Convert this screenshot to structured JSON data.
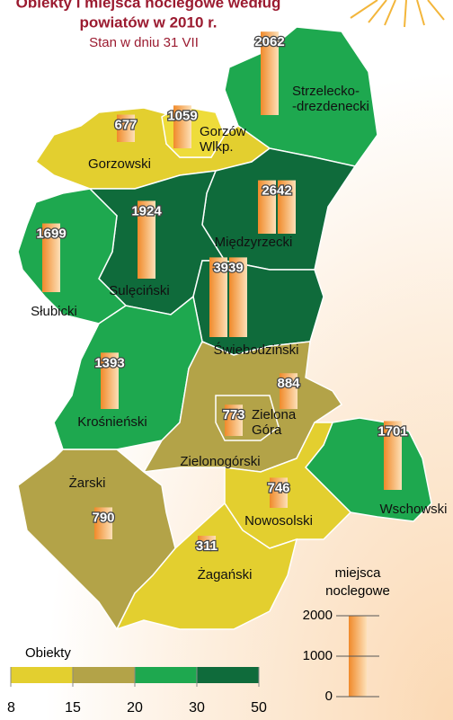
{
  "chart_data": {
    "type": "map",
    "title": [
      "Obiekty i miejsca noclegowe według",
      "powiatów w 2010 r."
    ],
    "subtitle": "Stan w dniu 31 VII",
    "regions": [
      {
        "name": [
          "Strzelecko-",
          "-drezdenecki"
        ],
        "value": 2062,
        "color": "#1ea84f"
      },
      {
        "name": [
          "Gorzowski"
        ],
        "value": 677,
        "color": "#e3cf2f"
      },
      {
        "name": [
          "Gorzów",
          "Wlkp."
        ],
        "value": 1059,
        "color": "#eedc3a"
      },
      {
        "name": [
          "Międzyrzecki"
        ],
        "value": 2642,
        "color": "#0f6b3b"
      },
      {
        "name": [
          "Sulęciński"
        ],
        "value": 1924,
        "color": "#0f6b3b"
      },
      {
        "name": [
          "Słubicki"
        ],
        "value": 1699,
        "color": "#1ea84f"
      },
      {
        "name": [
          "Świebodziński"
        ],
        "value": 3939,
        "color": "#0f6b3b"
      },
      {
        "name": [
          "Krośnieński"
        ],
        "value": 1393,
        "color": "#1ea84f"
      },
      {
        "name": [
          "Zielonogórski"
        ],
        "value": 884,
        "color": "#b3a348"
      },
      {
        "name": [
          "Zielona",
          "Góra"
        ],
        "value": 773,
        "color": "#b3a348"
      },
      {
        "name": [
          "Wschowski"
        ],
        "value": 1701,
        "color": "#1ea84f"
      },
      {
        "name": [
          "Nowosolski"
        ],
        "value": 746,
        "color": "#e3cf2f"
      },
      {
        "name": [
          "Żarski"
        ],
        "value": 790,
        "color": "#b3a348"
      },
      {
        "name": [
          "Żagański"
        ],
        "value": 311,
        "color": "#e3cf2f"
      }
    ],
    "legend": {
      "title": "Obiekty",
      "ticks": [
        8,
        15,
        20,
        30,
        50
      ],
      "colors": [
        "#e3cf2f",
        "#b3a348",
        "#1ea84f",
        "#0f6b3b"
      ]
    },
    "size_legend": {
      "title": [
        "miejsca",
        "noclegowe"
      ],
      "ylim": [
        0,
        2000
      ],
      "yticks": [
        0,
        1000,
        2000
      ]
    }
  }
}
